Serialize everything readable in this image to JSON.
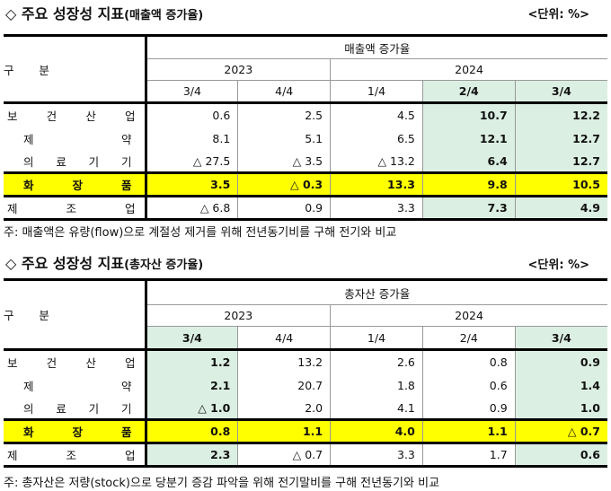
{
  "section1": {
    "title": "◇ 주요 성장성 지표",
    "subtitle": "(매출액 증가율)",
    "unit": "<단위: %>",
    "corner_label": "구       분",
    "group_header": "매출액 증가율",
    "years": [
      "2023",
      "2024"
    ],
    "quarters": [
      "3/4",
      "4/4",
      "1/4",
      "2/4",
      "3/4"
    ],
    "rows": [
      {
        "label": "보 건 산 업",
        "values": [
          "0.6",
          "2.5",
          "4.5",
          "10.7",
          "12.2"
        ]
      },
      {
        "label": "제 약",
        "values": [
          "8.1",
          "5.1",
          "6.5",
          "12.1",
          "12.7"
        ]
      },
      {
        "label": "의 료 기 기",
        "values": [
          "△ 27.5",
          "△ 3.5",
          "△ 13.2",
          "6.4",
          "12.7"
        ]
      },
      {
        "label": "화 장 품",
        "values": [
          "3.5",
          "△ 0.3",
          "13.3",
          "9.8",
          "10.5"
        ]
      },
      {
        "label": "제 조 업",
        "values": [
          "△ 6.8",
          "0.9",
          "3.3",
          "7.3",
          "4.9"
        ]
      }
    ],
    "note": "주: 매출액은 유량(flow)으로 계절성 제거를 위해 전년동기비를 구해 전기와 비교"
  },
  "section2": {
    "title": "◇ 주요 성장성 지표",
    "subtitle": "(총자산 증가율)",
    "unit": "<단위: %>",
    "corner_label": "구       분",
    "group_header": "총자산 증가율",
    "years": [
      "2023",
      "2024"
    ],
    "quarters": [
      "3/4",
      "4/4",
      "1/4",
      "2/4",
      "3/4"
    ],
    "rows": [
      {
        "label": "보 건 산 업",
        "values": [
          "1.2",
          "13.2",
          "2.6",
          "0.8",
          "0.9"
        ]
      },
      {
        "label": "제 약",
        "values": [
          "2.1",
          "20.7",
          "1.8",
          "0.6",
          "1.4"
        ]
      },
      {
        "label": "의 료 기 기",
        "values": [
          "△ 1.0",
          "2.0",
          "4.1",
          "0.9",
          "1.0"
        ]
      },
      {
        "label": "화 장 품",
        "values": [
          "0.8",
          "1.1",
          "4.0",
          "1.1",
          "△ 0.7"
        ]
      },
      {
        "label": "제 조 업",
        "values": [
          "2.3",
          "△ 0.7",
          "3.3",
          "1.7",
          "0.6"
        ]
      }
    ],
    "note": "주: 총자산은 저량(stock)으로 당분기 증감 파악을 위해 전기말비를 구해 전년동기와 비교"
  },
  "colors": {
    "highlight": "#ffff00",
    "accent_green": "#dcefe3"
  }
}
